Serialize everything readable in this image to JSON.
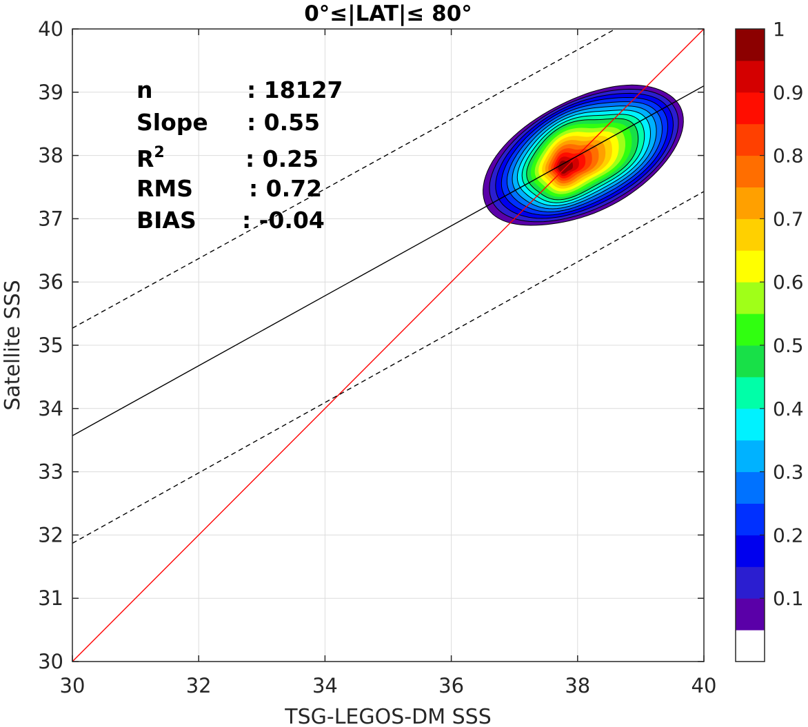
{
  "chart_data": {
    "type": "contour-scatter",
    "title": "0°≤|LAT|≤ 80°",
    "xlabel": "TSG-LEGOS-DM SSS",
    "ylabel": "Satellite SSS",
    "xlim": [
      30,
      40
    ],
    "ylim": [
      30,
      40
    ],
    "xticks": [
      "30",
      "32",
      "34",
      "36",
      "38",
      "40"
    ],
    "yticks": [
      "30",
      "31",
      "32",
      "33",
      "34",
      "35",
      "36",
      "37",
      "38",
      "39",
      "40"
    ],
    "grid": true,
    "stats": [
      {
        "label": "n",
        "value": ": 18127"
      },
      {
        "label": "Slope",
        "value": ": 0.55"
      },
      {
        "label": "R",
        "sup": "2",
        "value": ": 0.25"
      },
      {
        "label": "RMS",
        "value": ": 0.72"
      },
      {
        "label": "BIAS",
        "value": ": -0.04"
      }
    ],
    "reference_lines": [
      {
        "kind": "one-to-one",
        "color": "#ff0000",
        "style": "solid",
        "points": [
          [
            30,
            30
          ],
          [
            40,
            40
          ]
        ]
      },
      {
        "kind": "regression",
        "color": "#000000",
        "style": "solid",
        "points": [
          [
            30,
            33.57
          ],
          [
            40,
            39.1
          ]
        ]
      },
      {
        "kind": "upper-bound",
        "color": "#000000",
        "style": "dashed",
        "points": [
          [
            30,
            35.27
          ],
          [
            38.6,
            40
          ]
        ]
      },
      {
        "kind": "lower-bound",
        "color": "#000000",
        "style": "dashed",
        "points": [
          [
            30,
            31.87
          ],
          [
            40,
            37.43
          ]
        ]
      }
    ],
    "density_peak": [
      38.1,
      38.0
    ],
    "density_orientation_deg": 31,
    "colorbar": {
      "ticks": [
        "0.1",
        "0.2",
        "0.3",
        "0.4",
        "0.5",
        "0.6",
        "0.7",
        "0.8",
        "0.9",
        "1"
      ],
      "range": [
        0,
        1
      ],
      "colors": [
        "#ffffff",
        "#5a00a8",
        "#2b1ed0",
        "#0000ee",
        "#0030ff",
        "#0072ff",
        "#00b2ff",
        "#00f2ff",
        "#00ffa8",
        "#18e048",
        "#30ff10",
        "#a0ff18",
        "#ffff00",
        "#ffd000",
        "#ffa000",
        "#ff6e00",
        "#ff4000",
        "#ff0d00",
        "#d40000",
        "#8c0000"
      ]
    }
  }
}
